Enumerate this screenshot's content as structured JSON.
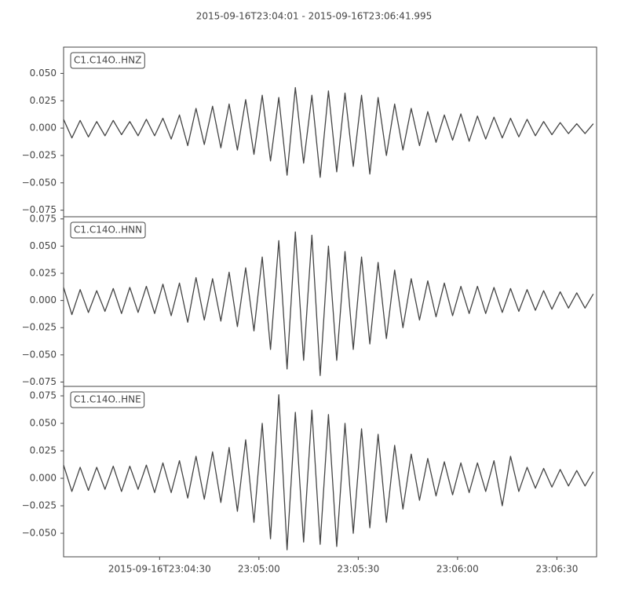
{
  "chart_data": [
    {
      "type": "line",
      "title": "2015-09-16T23:04:01  -  2015-09-16T23:06:41.995",
      "label": "C1.C14O..HNZ",
      "x": [
        0,
        2.5,
        5,
        7.5,
        10,
        12.5,
        15,
        17.5,
        20,
        22.5,
        25,
        27.5,
        30,
        32.5,
        35,
        37.5,
        40,
        42.5,
        45,
        47.5,
        50,
        52.5,
        55,
        57.5,
        60,
        62.5,
        65,
        67.5,
        70,
        72.5,
        75,
        77.5,
        80,
        82.5,
        85,
        87.5,
        90,
        92.5,
        95,
        97.5,
        100,
        102.5,
        105,
        107.5,
        110,
        112.5,
        115,
        117.5,
        120,
        122.5,
        125,
        127.5,
        130,
        132.5,
        135,
        137.5,
        140,
        142.5,
        145,
        147.5,
        150,
        152.5,
        155,
        157.5,
        160
      ],
      "series": [
        {
          "color": "#444444",
          "values": [
            0.008,
            -0.009,
            0.007,
            -0.008,
            0.006,
            -0.007,
            0.007,
            -0.006,
            0.006,
            -0.007,
            0.008,
            -0.007,
            0.009,
            -0.01,
            0.012,
            -0.016,
            0.018,
            -0.015,
            0.02,
            -0.018,
            0.022,
            -0.02,
            0.026,
            -0.024,
            0.03,
            -0.03,
            0.028,
            -0.043,
            0.037,
            -0.032,
            0.03,
            -0.045,
            0.034,
            -0.04,
            0.032,
            -0.035,
            0.03,
            -0.042,
            0.028,
            -0.025,
            0.022,
            -0.02,
            0.018,
            -0.016,
            0.015,
            -0.013,
            0.012,
            -0.011,
            0.013,
            -0.012,
            0.011,
            -0.01,
            0.01,
            -0.009,
            0.009,
            -0.008,
            0.008,
            -0.007,
            0.006,
            -0.006,
            0.005,
            -0.005,
            0.004,
            -0.005,
            0.004
          ]
        }
      ],
      "xlim": [
        0,
        160.995
      ],
      "ylim": [
        -0.081,
        0.074
      ],
      "yticks": [
        {
          "value": -0.075,
          "label": "−0.075"
        },
        {
          "value": -0.05,
          "label": "−0.050"
        },
        {
          "value": -0.025,
          "label": "−0.025"
        },
        {
          "value": 0,
          "label": "0.000"
        },
        {
          "value": 0.025,
          "label": "0.025"
        },
        {
          "value": 0.05,
          "label": "0.050"
        }
      ]
    },
    {
      "type": "line",
      "label": "C1.C14O..HNN",
      "x": [
        0,
        2.5,
        5,
        7.5,
        10,
        12.5,
        15,
        17.5,
        20,
        22.5,
        25,
        27.5,
        30,
        32.5,
        35,
        37.5,
        40,
        42.5,
        45,
        47.5,
        50,
        52.5,
        55,
        57.5,
        60,
        62.5,
        65,
        67.5,
        70,
        72.5,
        75,
        77.5,
        80,
        82.5,
        85,
        87.5,
        90,
        92.5,
        95,
        97.5,
        100,
        102.5,
        105,
        107.5,
        110,
        112.5,
        115,
        117.5,
        120,
        122.5,
        125,
        127.5,
        130,
        132.5,
        135,
        137.5,
        140,
        142.5,
        145,
        147.5,
        150,
        152.5,
        155,
        157.5,
        160
      ],
      "series": [
        {
          "color": "#444444",
          "values": [
            0.012,
            -0.013,
            0.01,
            -0.011,
            0.009,
            -0.01,
            0.011,
            -0.012,
            0.012,
            -0.011,
            0.013,
            -0.012,
            0.015,
            -0.014,
            0.016,
            -0.02,
            0.021,
            -0.018,
            0.02,
            -0.019,
            0.026,
            -0.024,
            0.03,
            -0.028,
            0.04,
            -0.045,
            0.055,
            -0.063,
            0.063,
            -0.055,
            0.06,
            -0.069,
            0.05,
            -0.055,
            0.045,
            -0.045,
            0.04,
            -0.04,
            0.035,
            -0.035,
            0.028,
            -0.025,
            0.02,
            -0.018,
            0.018,
            -0.015,
            0.016,
            -0.014,
            0.013,
            -0.012,
            0.013,
            -0.012,
            0.012,
            -0.011,
            0.011,
            -0.01,
            0.01,
            -0.009,
            0.009,
            -0.008,
            0.008,
            -0.007,
            0.007,
            -0.007,
            0.006
          ]
        }
      ],
      "xlim": [
        0,
        160.995
      ],
      "ylim": [
        -0.079,
        0.077
      ],
      "yticks": [
        {
          "value": -0.075,
          "label": "−0.075"
        },
        {
          "value": -0.05,
          "label": "−0.050"
        },
        {
          "value": -0.025,
          "label": "−0.025"
        },
        {
          "value": 0,
          "label": "0.000"
        },
        {
          "value": 0.025,
          "label": "0.025"
        },
        {
          "value": 0.05,
          "label": "0.050"
        },
        {
          "value": 0.075,
          "label": "0.075"
        }
      ]
    },
    {
      "type": "line",
      "label": "C1.C14O..HNE",
      "x": [
        0,
        2.5,
        5,
        7.5,
        10,
        12.5,
        15,
        17.5,
        20,
        22.5,
        25,
        27.5,
        30,
        32.5,
        35,
        37.5,
        40,
        42.5,
        45,
        47.5,
        50,
        52.5,
        55,
        57.5,
        60,
        62.5,
        65,
        67.5,
        70,
        72.5,
        75,
        77.5,
        80,
        82.5,
        85,
        87.5,
        90,
        92.5,
        95,
        97.5,
        100,
        102.5,
        105,
        107.5,
        110,
        112.5,
        115,
        117.5,
        120,
        122.5,
        125,
        127.5,
        130,
        132.5,
        135,
        137.5,
        140,
        142.5,
        145,
        147.5,
        150,
        152.5,
        155,
        157.5,
        160
      ],
      "series": [
        {
          "color": "#444444",
          "values": [
            0.012,
            -0.012,
            0.01,
            -0.011,
            0.01,
            -0.01,
            0.011,
            -0.012,
            0.011,
            -0.01,
            0.012,
            -0.013,
            0.014,
            -0.013,
            0.016,
            -0.018,
            0.02,
            -0.019,
            0.024,
            -0.022,
            0.028,
            -0.03,
            0.035,
            -0.04,
            0.05,
            -0.055,
            0.076,
            -0.065,
            0.06,
            -0.058,
            0.062,
            -0.06,
            0.058,
            -0.062,
            0.05,
            -0.05,
            0.045,
            -0.045,
            0.04,
            -0.04,
            0.03,
            -0.028,
            0.022,
            -0.02,
            0.018,
            -0.016,
            0.015,
            -0.015,
            0.014,
            -0.013,
            0.014,
            -0.012,
            0.016,
            -0.025,
            0.02,
            -0.012,
            0.01,
            -0.009,
            0.009,
            -0.008,
            0.008,
            -0.007,
            0.007,
            -0.007,
            0.006
          ]
        }
      ],
      "xlim": [
        0,
        160.995
      ],
      "ylim": [
        -0.0714,
        0.0836
      ],
      "yticks": [
        {
          "value": -0.05,
          "label": "−0.050"
        },
        {
          "value": -0.025,
          "label": "−0.025"
        },
        {
          "value": 0,
          "label": "0.000"
        },
        {
          "value": 0.025,
          "label": "0.025"
        },
        {
          "value": 0.05,
          "label": "0.050"
        },
        {
          "value": 0.075,
          "label": "0.075"
        }
      ],
      "xticks": [
        {
          "value": 29,
          "label": "2015-09-16T23:04:30"
        },
        {
          "value": 59,
          "label": "23:05:00"
        },
        {
          "value": 89,
          "label": "23:05:30"
        },
        {
          "value": 119,
          "label": "23:06:00"
        },
        {
          "value": 149,
          "label": "23:06:30"
        }
      ]
    }
  ]
}
